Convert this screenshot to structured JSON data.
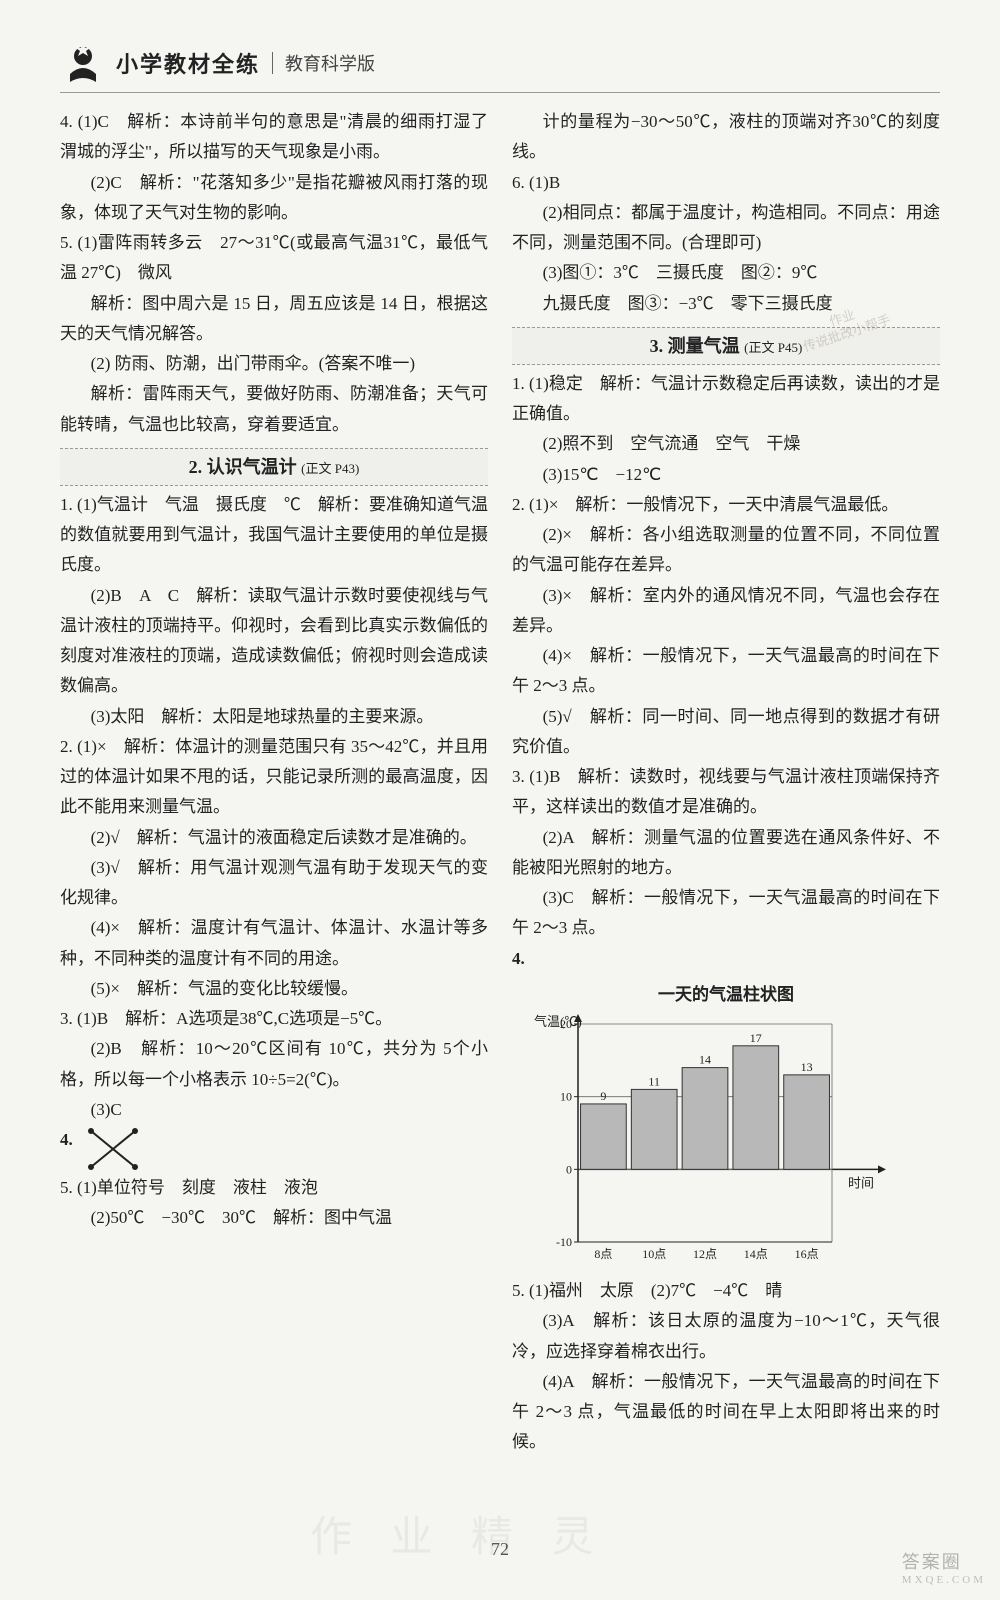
{
  "header": {
    "title": "小学教材全练",
    "subtitle": "教育科学版"
  },
  "page_number": "72",
  "watermarks": {
    "bottom_center": "作 业 精 灵",
    "bottom_right": "答案圈",
    "bottom_right_sub": "MXQE.COM",
    "stamp_line1": "作业",
    "stamp_line2": "传说批改小帮手"
  },
  "left": {
    "q4_1": "4. (1)C　解析：本诗前半句的意思是\"清晨的细雨打湿了渭城的浮尘\"，所以描写的天气现象是小雨。",
    "q4_2": "(2)C　解析：\"花落知多少\"是指花瓣被风雨打落的现象，体现了天气对生物的影响。",
    "q5_1a": "5. (1)雷阵雨转多云　27～31℃(或最高气温31℃，最低气温 27℃)　微风",
    "q5_1b": "解析：图中周六是 15 日，周五应该是 14 日，根据这天的天气情况解答。",
    "q5_2a": "(2) 防雨、防潮，出门带雨伞。(答案不唯一)",
    "q5_2b": "解析：雷阵雨天气，要做好防雨、防潮准备；天气可能转晴，气温也比较高，穿着要适宜。",
    "sec2_title": "2. 认识气温计",
    "sec2_ref": "(正文 P43)",
    "s2_q1_1": "1. (1)气温计　气温　摄氏度　℃　解析：要准确知道气温的数值就要用到气温计，我国气温计主要使用的单位是摄氏度。",
    "s2_q1_2": "(2)B　A　C　解析：读取气温计示数时要使视线与气温计液柱的顶端持平。仰视时，会看到比真实示数偏低的刻度对准液柱的顶端，造成读数偏低；俯视时则会造成读数偏高。",
    "s2_q1_3": "(3)太阳　解析：太阳是地球热量的主要来源。",
    "s2_q2_1": "2. (1)×　解析：体温计的测量范围只有 35～42℃，并且用过的体温计如果不甩的话，只能记录所测的最高温度，因此不能用来测量气温。",
    "s2_q2_2": "(2)√　解析：气温计的液面稳定后读数才是准确的。",
    "s2_q2_3": "(3)√　解析：用气温计观测气温有助于发现天气的变化规律。",
    "s2_q2_4": "(4)×　解析：温度计有气温计、体温计、水温计等多种，不同种类的温度计有不同的用途。",
    "s2_q2_5": "(5)×　解析：气温的变化比较缓慢。",
    "s2_q3_1": "3. (1)B　解析：A选项是38℃,C选项是−5℃。",
    "s2_q3_2": "(2)B　解析：10～20℃区间有 10℃，共分为 5个小格，所以每一个小格表示 10÷5=2(℃)。",
    "s2_q3_3": "(3)C",
    "s2_q4_label": "4.",
    "s2_q5_1": "5. (1)单位符号　刻度　液柱　液泡",
    "s2_q5_2": "(2)50℃　−30℃　30℃　解析：图中气温"
  },
  "right": {
    "cont1": "计的量程为−30～50℃，液柱的顶端对齐30℃的刻度线。",
    "q6_1": "6. (1)B",
    "q6_2": "(2)相同点：都属于温度计，构造相同。不同点：用途不同，测量范围不同。(合理即可)",
    "q6_3a": "(3)图①：3℃　三摄氏度　图②：9℃",
    "q6_3b": "九摄氏度　图③：−3℃　零下三摄氏度",
    "sec3_title": "3. 测量气温",
    "sec3_ref": "(正文 P45)",
    "s3_q1_1": "1. (1)稳定　解析：气温计示数稳定后再读数，读出的才是正确值。",
    "s3_q1_2": "(2)照不到　空气流通　空气　干燥",
    "s3_q1_3": "(3)15℃　−12℃",
    "s3_q2_1": "2. (1)×　解析：一般情况下，一天中清晨气温最低。",
    "s3_q2_2": "(2)×　解析：各小组选取测量的位置不同，不同位置的气温可能存在差异。",
    "s3_q2_3": "(3)×　解析：室内外的通风情况不同，气温也会存在差异。",
    "s3_q2_4": "(4)×　解析：一般情况下，一天气温最高的时间在下午 2～3 点。",
    "s3_q2_5": "(5)√　解析：同一时间、同一地点得到的数据才有研究价值。",
    "s3_q3_1": "3. (1)B　解析：读数时，视线要与气温计液柱顶端保持齐平，这样读出的数值才是准确的。",
    "s3_q3_2": "(2)A　解析：测量气温的位置要选在通风条件好、不能被阳光照射的地方。",
    "s3_q3_3": "(3)C　解析：一般情况下，一天气温最高的时间在下午 2～3 点。",
    "s3_q4_label": "4.",
    "chart": {
      "title": "一天的气温柱状图",
      "y_axis_label": "气温(℃)",
      "x_axis_label": "时间",
      "type": "bar",
      "categories": [
        "8点",
        "10点",
        "12点",
        "14点",
        "16点"
      ],
      "values": [
        9,
        11,
        14,
        17,
        13
      ],
      "bar_color": "#b8b8b8",
      "bar_border": "#333",
      "background_color": "#f5f5f2",
      "grid_color": "#666",
      "ylim": [
        -10,
        20
      ],
      "ytick_step": 10,
      "yticks": [
        -10,
        0,
        10,
        20
      ],
      "axis_color": "#222",
      "bar_width_ratio": 0.9,
      "label_fontsize": 12
    },
    "s3_q5_1": "5. (1)福州　太原　(2)7℃　−4℃　晴",
    "s3_q5_3": "(3)A　解析：该日太原的温度为−10～1℃，天气很冷，应选择穿着棉衣出行。",
    "s3_q5_4": "(4)A　解析：一般情况下，一天气温最高的时间在下午 2～3 点，气温最低的时间在早上太阳即将出来的时候。"
  }
}
